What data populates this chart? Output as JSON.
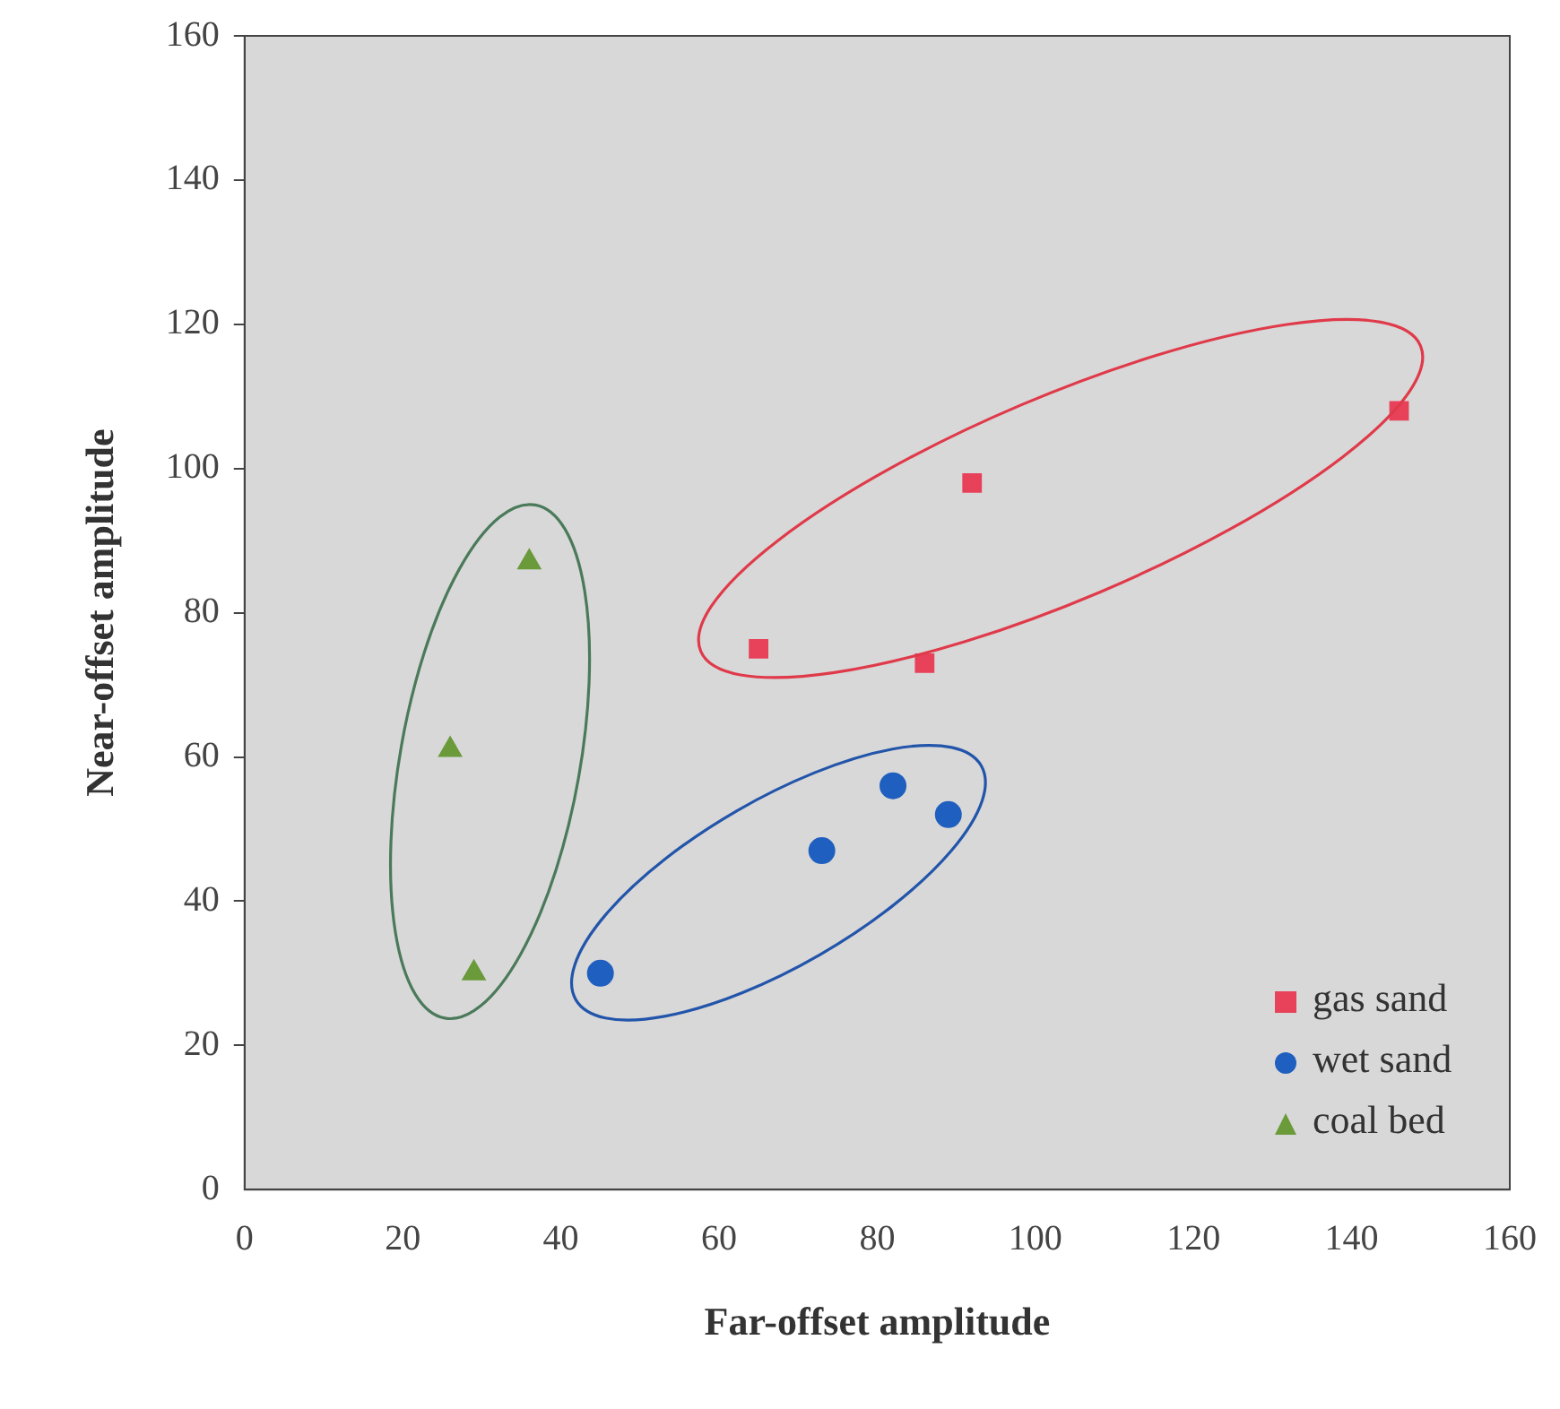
{
  "chart_data": {
    "type": "scatter",
    "xlabel": "Far-offset amplitude",
    "ylabel": "Near-offset amplitude",
    "xlim": [
      0,
      160
    ],
    "xticks": [
      0,
      20,
      40,
      60,
      80,
      100,
      120,
      140,
      160
    ],
    "ylim": [
      0,
      160
    ],
    "yticks": [
      0,
      20,
      40,
      60,
      80,
      100,
      120,
      140,
      160
    ],
    "grid": false,
    "legend": "bottom right",
    "series": [
      {
        "name": "gas sand",
        "color": "#e8415a",
        "marker": "square",
        "x": [
          65,
          92,
          86,
          146
        ],
        "values": [
          75,
          98,
          73,
          108
        ]
      },
      {
        "name": "wet sand",
        "color": "#1f5fbf",
        "marker": "circle",
        "x": [
          45,
          73,
          82,
          89
        ],
        "values": [
          30,
          47,
          56,
          52
        ]
      },
      {
        "name": "coal bed",
        "color": "#6a9a3a",
        "marker": "triangle",
        "x": [
          36,
          26,
          29
        ],
        "values": [
          87,
          61,
          30
        ]
      }
    ]
  }
}
